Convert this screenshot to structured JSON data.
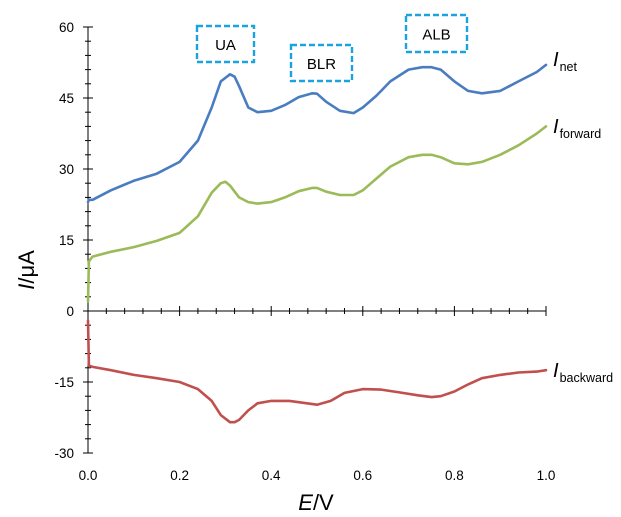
{
  "chart_data": {
    "type": "line",
    "title": "",
    "xlabel": {
      "italic": "E",
      "rest": "/V"
    },
    "ylabel": {
      "italic": "I",
      "rest": "/μA"
    },
    "xlim": [
      0,
      1
    ],
    "ylim": [
      -30,
      60
    ],
    "xticks": [
      "0.0",
      "0.2",
      "0.4",
      "0.6",
      "0.8",
      "1.0"
    ],
    "yticks": [
      "60",
      "45",
      "30",
      "15",
      "0",
      "-15",
      "-30"
    ],
    "grid": false,
    "legend": "none",
    "annotations": [
      "UA",
      "BLR",
      "ALB"
    ],
    "series": [
      {
        "name": "I_net",
        "label_main": "I",
        "label_sub": "net",
        "color": "#4a7cc0",
        "x": [
          0.0,
          0.002,
          0.01,
          0.05,
          0.1,
          0.15,
          0.2,
          0.24,
          0.27,
          0.29,
          0.31,
          0.32,
          0.33,
          0.35,
          0.37,
          0.4,
          0.43,
          0.46,
          0.49,
          0.5,
          0.52,
          0.55,
          0.58,
          0.6,
          0.63,
          0.66,
          0.7,
          0.73,
          0.75,
          0.77,
          0.8,
          0.83,
          0.86,
          0.9,
          0.94,
          0.98,
          1.0
        ],
        "y": [
          23,
          23.5,
          23.5,
          25.5,
          27.5,
          29,
          31.5,
          36,
          43,
          48.5,
          50,
          49.5,
          47.5,
          43,
          42,
          42.3,
          43.5,
          45.2,
          46,
          45.9,
          44.2,
          42.3,
          41.8,
          43,
          45.5,
          48.5,
          51,
          51.5,
          51.5,
          51,
          48.5,
          46.5,
          46,
          46.5,
          48.5,
          50.5,
          52
        ]
      },
      {
        "name": "I_forward",
        "label_main": "I",
        "label_sub": "forward",
        "color": "#9bbb59",
        "x": [
          0.0,
          0.002,
          0.01,
          0.05,
          0.1,
          0.15,
          0.2,
          0.24,
          0.27,
          0.29,
          0.3,
          0.31,
          0.33,
          0.35,
          0.37,
          0.4,
          0.43,
          0.46,
          0.49,
          0.5,
          0.52,
          0.55,
          0.58,
          0.6,
          0.63,
          0.66,
          0.7,
          0.73,
          0.75,
          0.77,
          0.8,
          0.83,
          0.86,
          0.9,
          0.94,
          0.98,
          1.0
        ],
        "y": [
          2,
          10.5,
          11.5,
          12.5,
          13.5,
          14.8,
          16.5,
          20,
          25,
          27,
          27.3,
          26.5,
          24,
          23,
          22.7,
          23,
          24,
          25.3,
          26,
          26,
          25.2,
          24.5,
          24.5,
          25.5,
          28,
          30.5,
          32.5,
          33,
          33,
          32.5,
          31.2,
          31,
          31.5,
          33,
          35,
          37.5,
          39
        ]
      },
      {
        "name": "I_backward",
        "label_main": "I",
        "label_sub": "backward",
        "color": "#c0504d",
        "x": [
          0.0,
          0.002,
          0.01,
          0.05,
          0.1,
          0.15,
          0.2,
          0.24,
          0.27,
          0.29,
          0.31,
          0.32,
          0.33,
          0.35,
          0.37,
          0.4,
          0.44,
          0.47,
          0.5,
          0.53,
          0.56,
          0.6,
          0.64,
          0.68,
          0.72,
          0.75,
          0.77,
          0.8,
          0.83,
          0.86,
          0.9,
          0.94,
          0.98,
          1.0
        ],
        "y": [
          -2,
          -11.5,
          -11.8,
          -12.5,
          -13.5,
          -14.2,
          -15,
          -16.5,
          -19,
          -22,
          -23.5,
          -23.5,
          -23,
          -21,
          -19.5,
          -19,
          -19,
          -19.4,
          -19.8,
          -19,
          -17.3,
          -16.5,
          -16.6,
          -17.2,
          -17.8,
          -18.2,
          -18,
          -17,
          -15.5,
          -14.2,
          -13.5,
          -13,
          -12.8,
          -12.5
        ]
      }
    ]
  }
}
